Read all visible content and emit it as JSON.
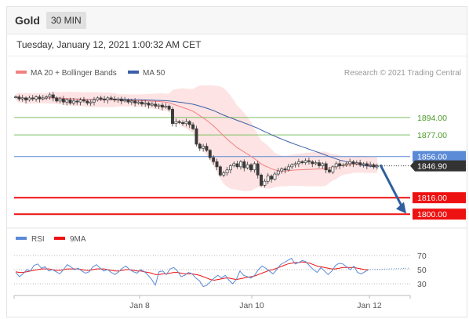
{
  "header": {
    "symbol": "Gold",
    "period": "30 MIN",
    "datetime": "Tuesday, January 12, 2021 1:00:32 AM CET"
  },
  "legend": {
    "ma20": "MA 20 + Bollinger Bands",
    "ma50": "MA 50",
    "credit": "Research © 2021 Trading Central"
  },
  "rsi_legend": {
    "rsi": "RSI",
    "ma9": "9MA"
  },
  "colors": {
    "ma20": "#f28080",
    "ma50": "#3b5fa8",
    "band_fill": "#fde0e0",
    "support": "#ee1111",
    "pivot": "#5b8ad6",
    "resistance": "#7cc060",
    "current": "#333333",
    "arrow": "#2f5f9e",
    "candle": "#3a3a3a",
    "rsi": "#5b8ad6",
    "rsi_ma": "#ee1111"
  },
  "chart_data": {
    "type": "candlestick",
    "x_ticks": [
      "Jan 8",
      "Jan 10",
      "Jan 12"
    ],
    "y_range": [
      1791,
      1932
    ],
    "levels": [
      {
        "label": "1894.00",
        "value": 1894,
        "kind": "resistance"
      },
      {
        "label": "1877.00",
        "value": 1877,
        "kind": "resistance"
      },
      {
        "label": "1856.00",
        "value": 1856,
        "kind": "pivot"
      },
      {
        "label": "1816.00",
        "value": 1816,
        "kind": "support"
      },
      {
        "label": "1800.00",
        "value": 1800,
        "kind": "support"
      }
    ],
    "current_price": {
      "label": "1846.90",
      "value": 1846.9
    },
    "close_series": [
      1914,
      1912,
      1913,
      1911,
      1913,
      1912,
      1914,
      1912,
      1913,
      1914,
      1916,
      1913,
      1910,
      1912,
      1909,
      1911,
      1908,
      1910,
      1909,
      1911,
      1910,
      1908,
      1909,
      1911,
      1913,
      1912,
      1911,
      1913,
      1912,
      1911,
      1912,
      1910,
      1911,
      1909,
      1910,
      1908,
      1909,
      1907,
      1908,
      1906,
      1907,
      1905,
      1906,
      1904,
      1905,
      1902,
      1888,
      1890,
      1889,
      1888,
      1890,
      1887,
      1883,
      1868,
      1864,
      1866,
      1862,
      1855,
      1851,
      1846,
      1838,
      1840,
      1843,
      1847,
      1849,
      1846,
      1851,
      1845,
      1848,
      1843,
      1849,
      1838,
      1828,
      1832,
      1837,
      1834,
      1839,
      1842,
      1844,
      1843,
      1846,
      1848,
      1849,
      1851,
      1850,
      1852,
      1851,
      1849,
      1850,
      1847,
      1849,
      1843,
      1841,
      1846,
      1849,
      1847,
      1848,
      1849,
      1851,
      1849,
      1850,
      1848,
      1849,
      1847,
      1848,
      1846,
      1847
    ],
    "projection": {
      "from": 1848,
      "to": 1800
    },
    "rsi": {
      "levels": [
        70,
        50,
        30
      ],
      "level_labels": [
        "70",
        "50",
        "30"
      ],
      "rsi_values": [
        46,
        40,
        44,
        50,
        48,
        56,
        58,
        52,
        54,
        48,
        50,
        47,
        44,
        50,
        57,
        54,
        50,
        52,
        48,
        45,
        47,
        54,
        57,
        52,
        48,
        50,
        46,
        43,
        47,
        52,
        55,
        50,
        47,
        45,
        50,
        47,
        42,
        36,
        28,
        47,
        48,
        43,
        51,
        53,
        48,
        40,
        42,
        46,
        44,
        38,
        34,
        26,
        28,
        33,
        38,
        42,
        38,
        42,
        35,
        30,
        36,
        48,
        42,
        40,
        38,
        42,
        50,
        55,
        52,
        48,
        44,
        50,
        57,
        60,
        63,
        66,
        58,
        60,
        63,
        61,
        55,
        50,
        46,
        53,
        48,
        43,
        48,
        56,
        59,
        58,
        54,
        50,
        55,
        46,
        44,
        47,
        50
      ],
      "ma_values": [
        47,
        46,
        46,
        47,
        48,
        49,
        50,
        51,
        51,
        51,
        50,
        49,
        49,
        50,
        51,
        51,
        51,
        51,
        50,
        49,
        49,
        50,
        51,
        51,
        51,
        50,
        49,
        48,
        48,
        49,
        50,
        50,
        49,
        48,
        48,
        47,
        46,
        45,
        43,
        43,
        44,
        44,
        45,
        46,
        46,
        45,
        44,
        44,
        44,
        43,
        42,
        40,
        38,
        36,
        35,
        36,
        37,
        38,
        38,
        37,
        36,
        37,
        38,
        39,
        40,
        41,
        43,
        45,
        47,
        49,
        50,
        52,
        54,
        56,
        58,
        59,
        60,
        60,
        61,
        60,
        59,
        57,
        55,
        54,
        53,
        52,
        51,
        51,
        52,
        53,
        53,
        53,
        53,
        52,
        51,
        50,
        50
      ]
    }
  }
}
